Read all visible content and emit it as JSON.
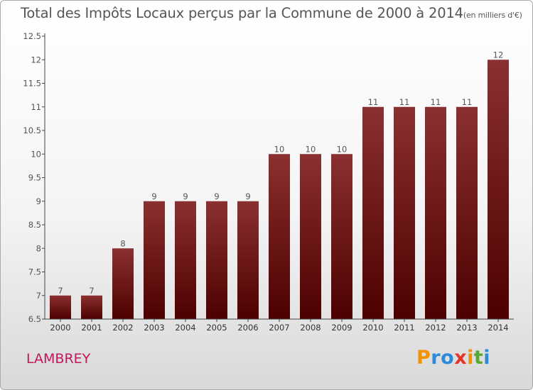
{
  "title": "Total des Impôts Locaux perçus par la Commune de 2000 à 2014",
  "title_unit": "(en milliers d'€)",
  "commune": "LAMBREY",
  "logo": {
    "letters": [
      "P",
      "r",
      "o",
      "x",
      "i",
      "t",
      "i"
    ],
    "colors": [
      "#f39200",
      "#2d8ad8",
      "#2d8ad8",
      "#e6332a",
      "#f39200",
      "#5aa832",
      "#2d8ad8"
    ]
  },
  "colors": {
    "bar_top": "#8b3030",
    "bar_bottom": "#4d0000",
    "text": "#555555"
  },
  "chart_data": {
    "type": "bar",
    "title": "Total des Impôts Locaux perçus par la Commune de 2000 à 2014",
    "xlabel": "",
    "ylabel": "",
    "categories": [
      "2000",
      "2001",
      "2002",
      "2003",
      "2004",
      "2005",
      "2006",
      "2007",
      "2008",
      "2009",
      "2010",
      "2011",
      "2012",
      "2013",
      "2014"
    ],
    "values": [
      7,
      7,
      8,
      9,
      9,
      9,
      9,
      10,
      10,
      10,
      11,
      11,
      11,
      11,
      12
    ],
    "value_labels": [
      "7",
      "7",
      "8",
      "9",
      "9",
      "9",
      "9",
      "10",
      "10",
      "10",
      "11",
      "11",
      "11",
      "11",
      "12"
    ],
    "ylim": [
      6.5,
      12.5
    ],
    "yticks": [
      6.5,
      7,
      7.5,
      8,
      8.5,
      9,
      9.5,
      10,
      10.5,
      11,
      11.5,
      12,
      12.5
    ],
    "ytick_labels": [
      "6.5",
      "7",
      "7.5",
      "8",
      "8.5",
      "9",
      "9.5",
      "10",
      "10.5",
      "11",
      "11.5",
      "12",
      "12.5"
    ],
    "grid": false,
    "legend": "none"
  }
}
